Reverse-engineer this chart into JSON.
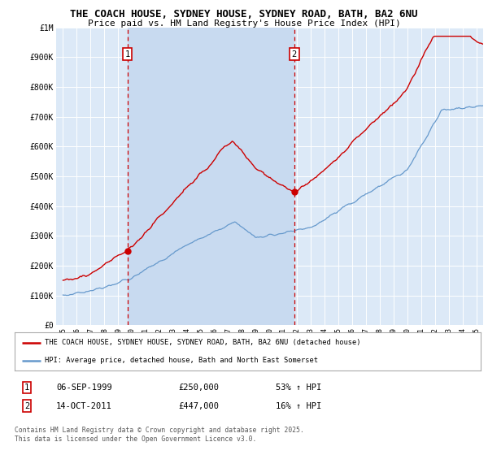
{
  "title_line1": "THE COACH HOUSE, SYDNEY HOUSE, SYDNEY ROAD, BATH, BA2 6NU",
  "title_line2": "Price paid vs. HM Land Registry's House Price Index (HPI)",
  "bg_color": "#dce9f7",
  "shade_color": "#c8daf0",
  "red_line_color": "#cc0000",
  "blue_line_color": "#6699cc",
  "sale1_date_x": 1999.68,
  "sale1_price": 250000,
  "sale2_date_x": 2011.79,
  "sale2_price": 447000,
  "ylim_min": 0,
  "ylim_max": 1000000,
  "xlim_min": 1994.5,
  "xlim_max": 2025.5,
  "ylabel_ticks": [
    0,
    100000,
    200000,
    300000,
    400000,
    500000,
    600000,
    700000,
    800000,
    900000,
    1000000
  ],
  "ylabel_labels": [
    "£0",
    "£100K",
    "£200K",
    "£300K",
    "£400K",
    "£500K",
    "£600K",
    "£700K",
    "£800K",
    "£900K",
    "£1M"
  ],
  "xticks": [
    1995,
    1996,
    1997,
    1998,
    1999,
    2000,
    2001,
    2002,
    2003,
    2004,
    2005,
    2006,
    2007,
    2008,
    2009,
    2010,
    2011,
    2012,
    2013,
    2014,
    2015,
    2016,
    2017,
    2018,
    2019,
    2020,
    2021,
    2022,
    2023,
    2024,
    2025
  ],
  "legend_line1": "THE COACH HOUSE, SYDNEY HOUSE, SYDNEY ROAD, BATH, BA2 6NU (detached house)",
  "legend_line2": "HPI: Average price, detached house, Bath and North East Somerset",
  "footnote": "Contains HM Land Registry data © Crown copyright and database right 2025.\nThis data is licensed under the Open Government Licence v3.0.",
  "table_row1": [
    "1",
    "06-SEP-1999",
    "£250,000",
    "53% ↑ HPI"
  ],
  "table_row2": [
    "2",
    "14-OCT-2011",
    "£447,000",
    "16% ↑ HPI"
  ]
}
